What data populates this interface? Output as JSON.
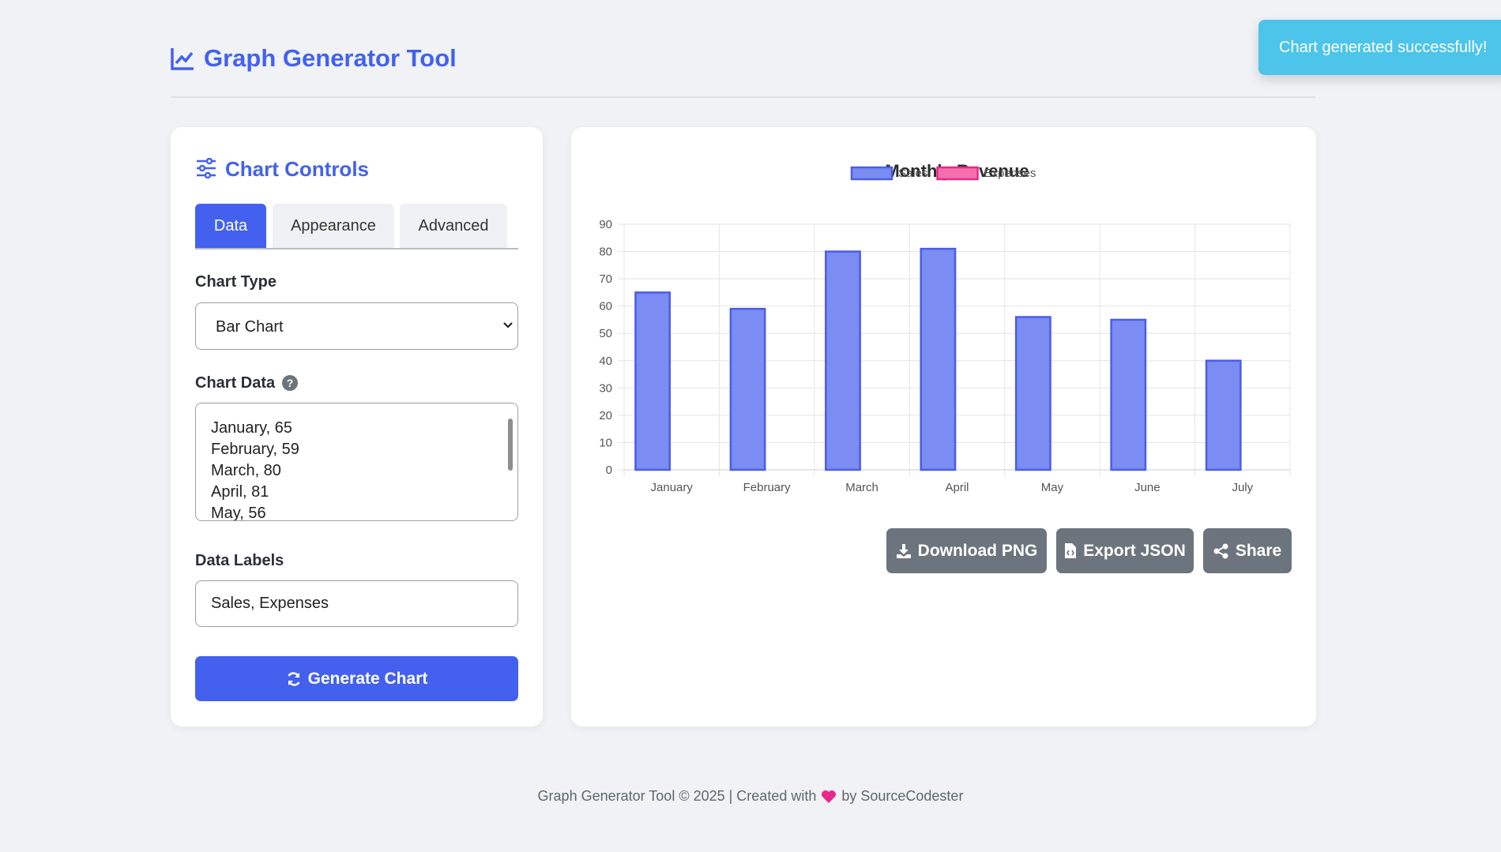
{
  "header": {
    "title": "Graph Generator Tool"
  },
  "toast": "Chart generated successfully!",
  "controls": {
    "title": "Chart Controls",
    "tabs": [
      "Data",
      "Appearance",
      "Advanced"
    ],
    "chart_type_label": "Chart Type",
    "chart_type": "Bar Chart",
    "chart_data_label": "Chart Data",
    "chart_data_lines": [
      "January, 65",
      "February, 59",
      "March, 80",
      "April, 81",
      "May, 56"
    ],
    "data_labels_label": "Data Labels",
    "data_labels": "Sales, Expenses",
    "generate_button": "Generate Chart"
  },
  "chart_data": {
    "type": "bar",
    "title": "Monthly Revenue",
    "categories": [
      "January",
      "February",
      "March",
      "April",
      "May",
      "June",
      "July"
    ],
    "series": [
      {
        "name": "Sales",
        "color": "#7b8cf2",
        "border": "#4a5de8",
        "values": [
          65,
          59,
          80,
          81,
          56,
          55,
          40
        ]
      },
      {
        "name": "Expenses",
        "color": "#f56fae",
        "border": "#e8288a",
        "values": [
          null,
          null,
          null,
          null,
          null,
          null,
          null
        ]
      }
    ],
    "ylim": [
      0,
      90
    ],
    "yticks": [
      0,
      10,
      20,
      30,
      40,
      50,
      60,
      70,
      80,
      90
    ],
    "grid": true,
    "legend": "top"
  },
  "actions": [
    "Download PNG",
    "Export JSON",
    "Share"
  ],
  "footer": {
    "before": "Graph Generator Tool © 2025 | Created with",
    "after": "by SourceCodester"
  }
}
